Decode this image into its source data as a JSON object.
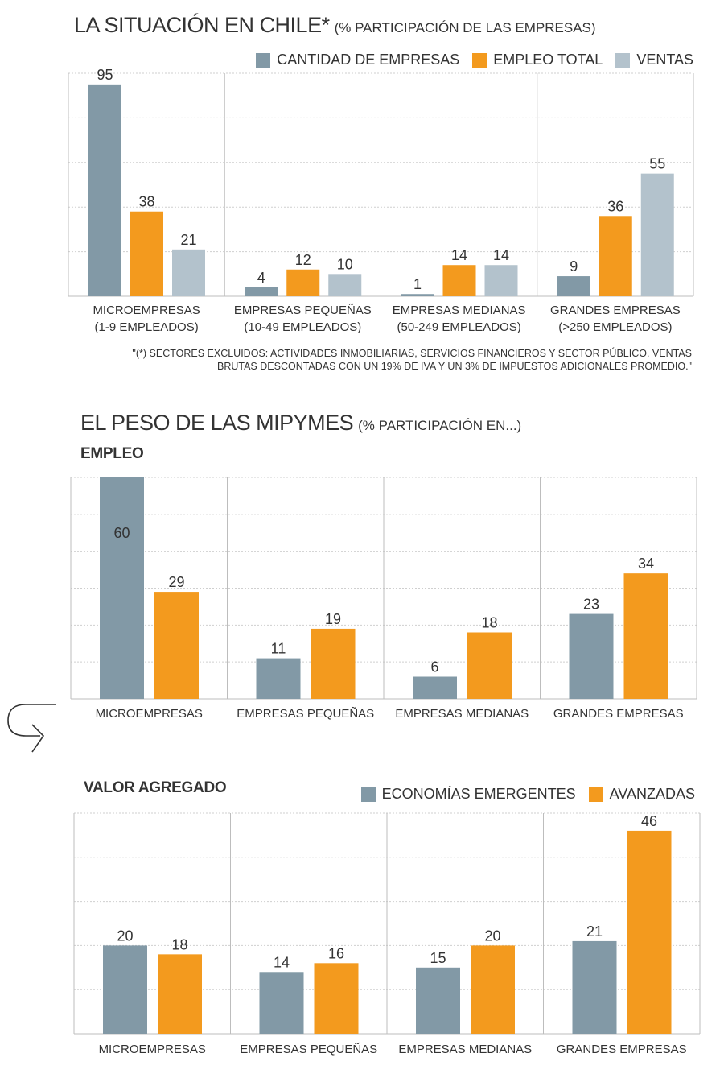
{
  "colors": {
    "gray": "#8299a6",
    "orange": "#f39a1e",
    "light": "#b3c2cc",
    "grid": "#cfcfcf",
    "axis": "#bdbdbd"
  },
  "chart1": {
    "title": "LA SITUACIÓN EN CHILE*",
    "subtitle": "(% PARTICIPACIÓN DE LAS EMPRESAS)",
    "legend": [
      "CANTIDAD DE EMPRESAS",
      "EMPLEO TOTAL",
      "VENTAS"
    ],
    "note_line1": "\"(*) SECTORES EXCLUIDOS: ACTIVIDADES INMOBILIARIAS, SERVICIOS FINANCIEROS Y SECTOR PÚBLICO. VENTAS",
    "note_line2": "BRUTAS DESCONTADAS CON UN 19% DE IVA Y UN 3% DE IMPUESTOS ADICIONALES PROMEDIO.\""
  },
  "chart2": {
    "title": "EL PESO DE LAS MIPYMES",
    "subtitle": "(% PARTICIPACIÓN EN...)",
    "section": "EMPLEO"
  },
  "chart3": {
    "section": "VALOR AGREGADO",
    "legend": [
      "ECONOMÍAS EMERGENTES",
      "AVANZADAS"
    ]
  },
  "chart_data": [
    {
      "type": "bar",
      "title": "LA SITUACIÓN EN CHILE*",
      "subtitle": "(% PARTICIPACIÓN DE LAS EMPRESAS)",
      "categories": [
        [
          "MICROEMPRESAS",
          "(1-9 EMPLEADOS)"
        ],
        [
          "EMPRESAS PEQUEÑAS",
          "(10-49 EMPLEADOS)"
        ],
        [
          "EMPRESAS MEDIANAS",
          "(50-249 EMPLEADOS)"
        ],
        [
          "GRANDES EMPRESAS",
          "(>250 EMPLEADOS)"
        ]
      ],
      "series": [
        {
          "name": "CANTIDAD DE EMPRESAS",
          "values": [
            95,
            4,
            1,
            9
          ]
        },
        {
          "name": "EMPLEO TOTAL",
          "values": [
            38,
            12,
            14,
            36
          ]
        },
        {
          "name": "VENTAS",
          "values": [
            21,
            10,
            14,
            55
          ]
        }
      ],
      "ylim": [
        0,
        100
      ],
      "grid": true,
      "legend_position": "top-right"
    },
    {
      "type": "bar",
      "title": "EMPLEO",
      "categories": [
        [
          "MICROEMPRESAS"
        ],
        [
          "EMPRESAS PEQUEÑAS"
        ],
        [
          "EMPRESAS MEDIANAS"
        ],
        [
          "GRANDES EMPRESAS"
        ]
      ],
      "series": [
        {
          "values": [
            60,
            11,
            6,
            23
          ]
        },
        {
          "values": [
            29,
            19,
            18,
            34
          ]
        }
      ],
      "ylim": [
        0,
        60
      ],
      "grid": true
    },
    {
      "type": "bar",
      "title": "VALOR AGREGADO",
      "categories": [
        [
          "MICROEMPRESAS"
        ],
        [
          "EMPRESAS PEQUEÑAS"
        ],
        [
          "EMPRESAS MEDIANAS"
        ],
        [
          "GRANDES EMPRESAS"
        ]
      ],
      "series": [
        {
          "name": "ECONOMÍAS EMERGENTES",
          "values": [
            20,
            14,
            15,
            21
          ]
        },
        {
          "name": "AVANZADAS",
          "values": [
            18,
            16,
            20,
            46
          ]
        }
      ],
      "ylim": [
        0,
        50
      ],
      "grid": true,
      "legend_position": "top-right"
    }
  ]
}
